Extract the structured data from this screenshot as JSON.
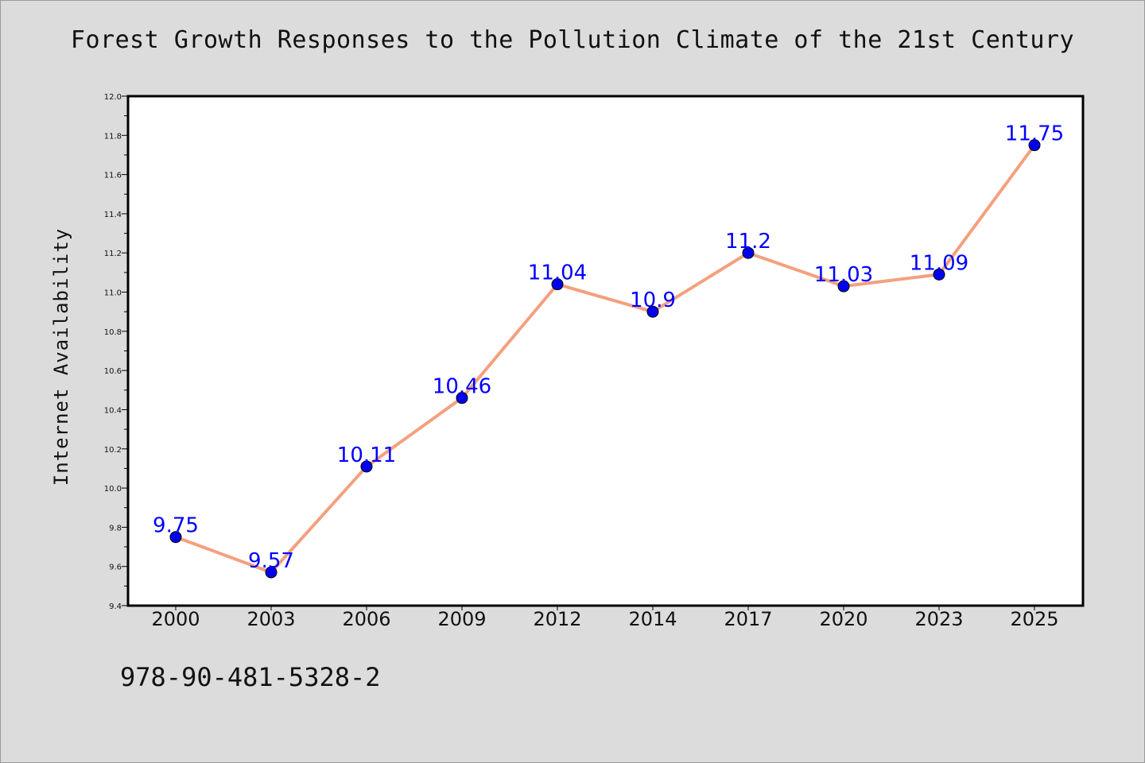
{
  "chart_data": {
    "type": "line",
    "title": "Forest Growth Responses to the Pollution Climate of the 21st Century",
    "xlabel": "",
    "ylabel": "Internet Availability",
    "categories": [
      "2000",
      "2003",
      "2006",
      "2009",
      "2012",
      "2014",
      "2017",
      "2020",
      "2023",
      "2025"
    ],
    "series": [
      {
        "values": [
          9.75,
          9.57,
          10.11,
          10.46,
          11.04,
          10.9,
          11.2,
          11.03,
          11.09,
          11.75
        ],
        "line_color": "#f4a07f",
        "marker_color": "#0000ee",
        "label_color": "#0000ff"
      }
    ],
    "data_labels": [
      "9.75",
      "9.57",
      "10.11",
      "10.46",
      "11.04",
      "10.9",
      "11.2",
      "11.03",
      "11.09",
      "11.75"
    ],
    "y_ticks": [
      "9.4",
      "9.6",
      "9.8",
      "10.0",
      "10.2",
      "10.4",
      "10.6",
      "10.8",
      "11.0",
      "11.2",
      "11.4",
      "11.6",
      "11.8",
      "12.0"
    ],
    "ylim": [
      9.4,
      12.0
    ],
    "grid": false,
    "legend": "none"
  },
  "footer": {
    "code": "978-90-481-5328-2"
  }
}
